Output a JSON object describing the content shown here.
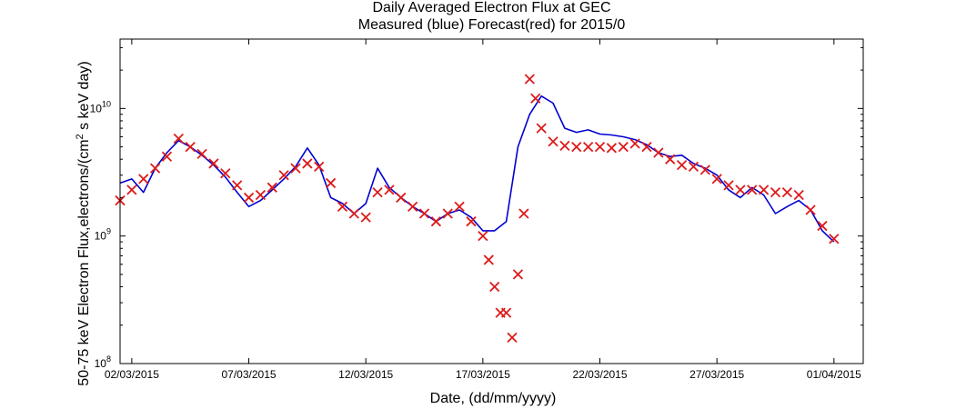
{
  "chart_data": {
    "type": "line",
    "title": "Daily Averaged Electron Flux at GEC",
    "subtitle": "Measured (blue) Forecast(red) for 2015/0",
    "xlabel": "Date, (dd/mm/yyyy)",
    "ylabel": "50-75 keV Electron Flux,electrons/(cm",
    "ylabel_sup": "2",
    "ylabel_tail": " s keV day)",
    "x_range": [
      "2015-03-01T12:00",
      "2015-04-02T06:00"
    ],
    "y_scale": "log",
    "ylim": [
      100000000,
      35000000000
    ],
    "grid": false,
    "x_ticks": [
      {
        "date": "2015-03-02",
        "label": "02/03/2015"
      },
      {
        "date": "2015-03-07",
        "label": "07/03/2015"
      },
      {
        "date": "2015-03-12",
        "label": "12/03/2015"
      },
      {
        "date": "2015-03-17",
        "label": "17/03/2015"
      },
      {
        "date": "2015-03-22",
        "label": "22/03/2015"
      },
      {
        "date": "2015-03-27",
        "label": "27/03/2015"
      },
      {
        "date": "2015-04-01",
        "label": "01/04/2015"
      }
    ],
    "y_ticks": [
      {
        "value": 100000000,
        "base": "10",
        "exp": "8"
      },
      {
        "value": 1000000000,
        "base": "10",
        "exp": "9"
      },
      {
        "value": 10000000000,
        "base": "10",
        "exp": "10"
      }
    ],
    "series": [
      {
        "color": "#0000d0",
        "marker": "line",
        "x": [
          "2015-03-01T12:00",
          "2015-03-02T00:00",
          "2015-03-02T12:00",
          "2015-03-03T00:00",
          "2015-03-03T12:00",
          "2015-03-04T00:00",
          "2015-03-04T12:00",
          "2015-03-05T00:00",
          "2015-03-05T12:00",
          "2015-03-06T00:00",
          "2015-03-06T12:00",
          "2015-03-07T00:00",
          "2015-03-07T12:00",
          "2015-03-08T00:00",
          "2015-03-08T12:00",
          "2015-03-09T00:00",
          "2015-03-09T12:00",
          "2015-03-10T00:00",
          "2015-03-10T12:00",
          "2015-03-11T00:00",
          "2015-03-11T12:00",
          "2015-03-12T00:00",
          "2015-03-12T12:00",
          "2015-03-13T00:00",
          "2015-03-13T12:00",
          "2015-03-14T00:00",
          "2015-03-14T12:00",
          "2015-03-15T00:00",
          "2015-03-15T12:00",
          "2015-03-16T00:00",
          "2015-03-16T12:00",
          "2015-03-17T00:00",
          "2015-03-17T12:00",
          "2015-03-18T00:00",
          "2015-03-18T12:00",
          "2015-03-19T00:00",
          "2015-03-19T12:00",
          "2015-03-20T00:00",
          "2015-03-20T12:00",
          "2015-03-21T00:00",
          "2015-03-21T12:00",
          "2015-03-22T00:00",
          "2015-03-22T12:00",
          "2015-03-23T00:00",
          "2015-03-23T12:00",
          "2015-03-24T00:00",
          "2015-03-24T12:00",
          "2015-03-25T00:00",
          "2015-03-25T12:00",
          "2015-03-26T00:00",
          "2015-03-26T12:00",
          "2015-03-27T00:00",
          "2015-03-27T12:00",
          "2015-03-28T00:00",
          "2015-03-28T12:00",
          "2015-03-29T00:00",
          "2015-03-29T12:00",
          "2015-03-30T00:00",
          "2015-03-30T12:00",
          "2015-03-31T00:00",
          "2015-03-31T12:00",
          "2015-04-01T00:00"
        ],
        "y": [
          2600000000,
          2800000000,
          2200000000,
          3400000000,
          4500000000,
          5600000000,
          5000000000,
          4300000000,
          3600000000,
          2900000000,
          2200000000,
          1700000000,
          1900000000,
          2300000000,
          2800000000,
          3500000000,
          4900000000,
          3600000000,
          2000000000,
          1800000000,
          1500000000,
          1800000000,
          3400000000,
          2400000000,
          2000000000,
          1700000000,
          1500000000,
          1300000000,
          1500000000,
          1600000000,
          1400000000,
          1100000000,
          1100000000,
          1300000000,
          5000000000,
          9000000000,
          12500000000,
          11000000000,
          7000000000,
          6500000000,
          6800000000,
          6300000000,
          6200000000,
          6000000000,
          5700000000,
          5200000000,
          4500000000,
          4200000000,
          4300000000,
          3700000000,
          3400000000,
          3000000000,
          2300000000,
          2000000000,
          2400000000,
          2100000000,
          1500000000,
          1700000000,
          1900000000,
          1600000000,
          1100000000,
          900000000
        ]
      },
      {
        "color": "#dd1a1a",
        "marker": "x",
        "x": [
          "2015-03-01T12:00",
          "2015-03-02T00:00",
          "2015-03-02T12:00",
          "2015-03-03T00:00",
          "2015-03-03T12:00",
          "2015-03-04T00:00",
          "2015-03-04T12:00",
          "2015-03-05T00:00",
          "2015-03-05T12:00",
          "2015-03-06T00:00",
          "2015-03-06T12:00",
          "2015-03-07T00:00",
          "2015-03-07T12:00",
          "2015-03-08T00:00",
          "2015-03-08T12:00",
          "2015-03-09T00:00",
          "2015-03-09T12:00",
          "2015-03-10T00:00",
          "2015-03-10T12:00",
          "2015-03-11T00:00",
          "2015-03-11T12:00",
          "2015-03-12T00:00",
          "2015-03-12T12:00",
          "2015-03-13T00:00",
          "2015-03-13T12:00",
          "2015-03-14T00:00",
          "2015-03-14T12:00",
          "2015-03-15T00:00",
          "2015-03-15T12:00",
          "2015-03-16T00:00",
          "2015-03-16T12:00",
          "2015-03-17T00:00",
          "2015-03-17T06:00",
          "2015-03-17T12:00",
          "2015-03-17T18:00",
          "2015-03-18T00:00",
          "2015-03-18T06:00",
          "2015-03-18T12:00",
          "2015-03-18T18:00",
          "2015-03-19T00:00",
          "2015-03-19T06:00",
          "2015-03-19T12:00",
          "2015-03-20T00:00",
          "2015-03-20T12:00",
          "2015-03-21T00:00",
          "2015-03-21T12:00",
          "2015-03-22T00:00",
          "2015-03-22T12:00",
          "2015-03-23T00:00",
          "2015-03-23T12:00",
          "2015-03-24T00:00",
          "2015-03-24T12:00",
          "2015-03-25T00:00",
          "2015-03-25T12:00",
          "2015-03-26T00:00",
          "2015-03-26T12:00",
          "2015-03-27T00:00",
          "2015-03-27T12:00",
          "2015-03-28T00:00",
          "2015-03-28T12:00",
          "2015-03-29T00:00",
          "2015-03-29T12:00",
          "2015-03-30T00:00",
          "2015-03-30T12:00",
          "2015-03-31T00:00",
          "2015-03-31T12:00",
          "2015-04-01T00:00"
        ],
        "y": [
          1900000000,
          2300000000,
          2800000000,
          3400000000,
          4200000000,
          5800000000,
          5000000000,
          4400000000,
          3700000000,
          3100000000,
          2500000000,
          2000000000,
          2100000000,
          2400000000,
          3000000000,
          3400000000,
          3700000000,
          3500000000,
          2600000000,
          1700000000,
          1500000000,
          1400000000,
          2200000000,
          2300000000,
          2000000000,
          1700000000,
          1500000000,
          1300000000,
          1500000000,
          1700000000,
          1300000000,
          1000000000,
          650000000,
          400000000,
          250000000,
          250000000,
          160000000,
          500000000,
          1500000000,
          17000000000,
          12000000000,
          7000000000,
          5500000000,
          5100000000,
          5000000000,
          5000000000,
          5000000000,
          4900000000,
          5000000000,
          5300000000,
          5000000000,
          4500000000,
          4000000000,
          3600000000,
          3500000000,
          3300000000,
          2800000000,
          2500000000,
          2300000000,
          2300000000,
          2300000000,
          2200000000,
          2200000000,
          2100000000,
          1600000000,
          1200000000,
          950000000
        ]
      }
    ]
  }
}
